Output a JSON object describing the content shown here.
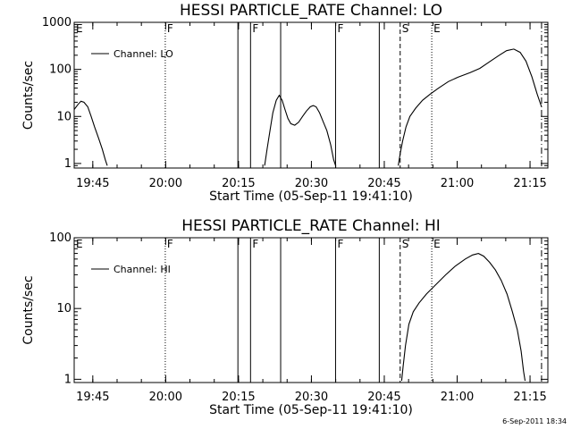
{
  "footer_stamp": "6-Sep-2011 18:34",
  "chart_data": [
    {
      "type": "line",
      "title": "HESSI PARTICLE_RATE Channel: LO",
      "xlabel": "Start Time (05-Sep-11 19:41:10)",
      "ylabel": "Counts/sec",
      "x_unit": "minutes after 19:41:10",
      "xlim": [
        0,
        97.5
      ],
      "yscale": "log",
      "ylim": [
        0.8,
        1000
      ],
      "x_ticks": [
        {
          "x": 3.83,
          "label": "19:45"
        },
        {
          "x": 18.83,
          "label": "20:00"
        },
        {
          "x": 33.83,
          "label": "20:15"
        },
        {
          "x": 48.83,
          "label": "20:30"
        },
        {
          "x": 63.83,
          "label": "20:45"
        },
        {
          "x": 78.83,
          "label": "21:00"
        },
        {
          "x": 93.83,
          "label": "21:15"
        }
      ],
      "y_ticks": [
        {
          "v": 1,
          "label": "1"
        },
        {
          "v": 10,
          "label": "10"
        },
        {
          "v": 100,
          "label": "100"
        },
        {
          "v": 1000,
          "label": "1000"
        }
      ],
      "legend": {
        "label": "Channel: LO",
        "position": "top-left"
      },
      "series": [
        {
          "name": "Channel: LO",
          "segments": [
            [
              [
                0,
                14
              ],
              [
                0.8,
                18
              ],
              [
                1.4,
                21
              ],
              [
                2,
                20
              ],
              [
                2.8,
                16
              ],
              [
                3.5,
                10
              ],
              [
                4.2,
                6
              ],
              [
                5,
                3.5
              ],
              [
                5.8,
                2
              ],
              [
                6.4,
                1.2
              ],
              [
                6.8,
                0.9
              ]
            ],
            [
              [
                39.2,
                0.9
              ],
              [
                39.7,
                2
              ],
              [
                40.3,
                5
              ],
              [
                40.9,
                12
              ],
              [
                41.6,
                22
              ],
              [
                42.2,
                28
              ],
              [
                42.8,
                22
              ],
              [
                43.4,
                14
              ],
              [
                44,
                9
              ],
              [
                44.6,
                7
              ],
              [
                45.4,
                6.5
              ],
              [
                46.2,
                7.5
              ],
              [
                47,
                10
              ],
              [
                47.8,
                13
              ],
              [
                48.6,
                16
              ],
              [
                49.2,
                17
              ],
              [
                49.8,
                16
              ],
              [
                50.5,
                12
              ],
              [
                51.2,
                8
              ],
              [
                52,
                5
              ],
              [
                52.8,
                2.5
              ],
              [
                53.4,
                1.2
              ],
              [
                53.8,
                0.9
              ]
            ],
            [
              [
                66.7,
                0.9
              ],
              [
                67.1,
                1.6
              ],
              [
                67.6,
                3
              ],
              [
                68.3,
                6
              ],
              [
                69.1,
                10
              ],
              [
                70.3,
                15
              ],
              [
                71.7,
                22
              ],
              [
                73.3,
                30
              ],
              [
                75,
                40
              ],
              [
                77,
                55
              ],
              [
                79,
                68
              ],
              [
                81.5,
                85
              ],
              [
                83.5,
                105
              ],
              [
                85.5,
                145
              ],
              [
                87.5,
                200
              ],
              [
                89,
                250
              ],
              [
                90.5,
                270
              ],
              [
                91.8,
                230
              ],
              [
                93,
                150
              ],
              [
                94.2,
                70
              ],
              [
                95.3,
                30
              ],
              [
                96.2,
                16
              ]
            ]
          ]
        }
      ],
      "markers": [
        {
          "x": 0,
          "label": "E",
          "style": "solid"
        },
        {
          "x": 18.75,
          "label": "F",
          "style": "dotted"
        },
        {
          "x": 33.7,
          "label": "",
          "style": "solid"
        },
        {
          "x": 36.3,
          "label": "F",
          "style": "solid"
        },
        {
          "x": 42.5,
          "label": "",
          "style": "solid"
        },
        {
          "x": 53.8,
          "label": "F",
          "style": "solid"
        },
        {
          "x": 62.8,
          "label": "",
          "style": "solid"
        },
        {
          "x": 67.1,
          "label": "S",
          "style": "dashed"
        },
        {
          "x": 73.6,
          "label": "E",
          "style": "dotted"
        },
        {
          "x": 96.2,
          "label": "",
          "style": "dashdot"
        }
      ]
    },
    {
      "type": "line",
      "title": "HESSI PARTICLE_RATE Channel: HI",
      "xlabel": "Start Time (05-Sep-11 19:41:10)",
      "ylabel": "Counts/sec",
      "x_unit": "minutes after 19:41:10",
      "xlim": [
        0,
        97.5
      ],
      "yscale": "log",
      "ylim": [
        0.9,
        100
      ],
      "x_ticks": [
        {
          "x": 3.83,
          "label": "19:45"
        },
        {
          "x": 18.83,
          "label": "20:00"
        },
        {
          "x": 33.83,
          "label": "20:15"
        },
        {
          "x": 48.83,
          "label": "20:30"
        },
        {
          "x": 63.83,
          "label": "20:45"
        },
        {
          "x": 78.83,
          "label": "21:00"
        },
        {
          "x": 93.83,
          "label": "21:15"
        }
      ],
      "y_ticks": [
        {
          "v": 1,
          "label": "1"
        },
        {
          "v": 10,
          "label": "10"
        },
        {
          "v": 100,
          "label": "100"
        }
      ],
      "legend": {
        "label": "Channel: HI",
        "position": "top-left"
      },
      "series": [
        {
          "name": "Channel: HI",
          "segments": [
            [
              [
                67.4,
                0.95
              ],
              [
                67.7,
                1.5
              ],
              [
                68.2,
                3
              ],
              [
                68.9,
                6
              ],
              [
                69.8,
                9
              ],
              [
                71,
                12
              ],
              [
                72.5,
                16
              ],
              [
                74.5,
                22
              ],
              [
                76.5,
                30
              ],
              [
                78.5,
                40
              ],
              [
                80.5,
                50
              ],
              [
                82,
                57
              ],
              [
                83.2,
                60
              ],
              [
                84.3,
                55
              ],
              [
                85.5,
                45
              ],
              [
                86.7,
                35
              ],
              [
                87.9,
                25
              ],
              [
                89.1,
                16
              ],
              [
                90.2,
                9
              ],
              [
                91.2,
                5
              ],
              [
                92,
                2.5
              ],
              [
                92.5,
                1.3
              ],
              [
                92.8,
                0.95
              ]
            ]
          ]
        }
      ],
      "markers": [
        {
          "x": 0,
          "label": "E",
          "style": "solid"
        },
        {
          "x": 18.75,
          "label": "F",
          "style": "dotted"
        },
        {
          "x": 33.7,
          "label": "",
          "style": "solid"
        },
        {
          "x": 36.3,
          "label": "F",
          "style": "solid"
        },
        {
          "x": 42.5,
          "label": "",
          "style": "solid"
        },
        {
          "x": 53.8,
          "label": "F",
          "style": "solid"
        },
        {
          "x": 62.8,
          "label": "",
          "style": "solid"
        },
        {
          "x": 67.1,
          "label": "S",
          "style": "dashed"
        },
        {
          "x": 73.6,
          "label": "E",
          "style": "dotted"
        },
        {
          "x": 96.2,
          "label": "",
          "style": "dashdot"
        }
      ]
    }
  ]
}
